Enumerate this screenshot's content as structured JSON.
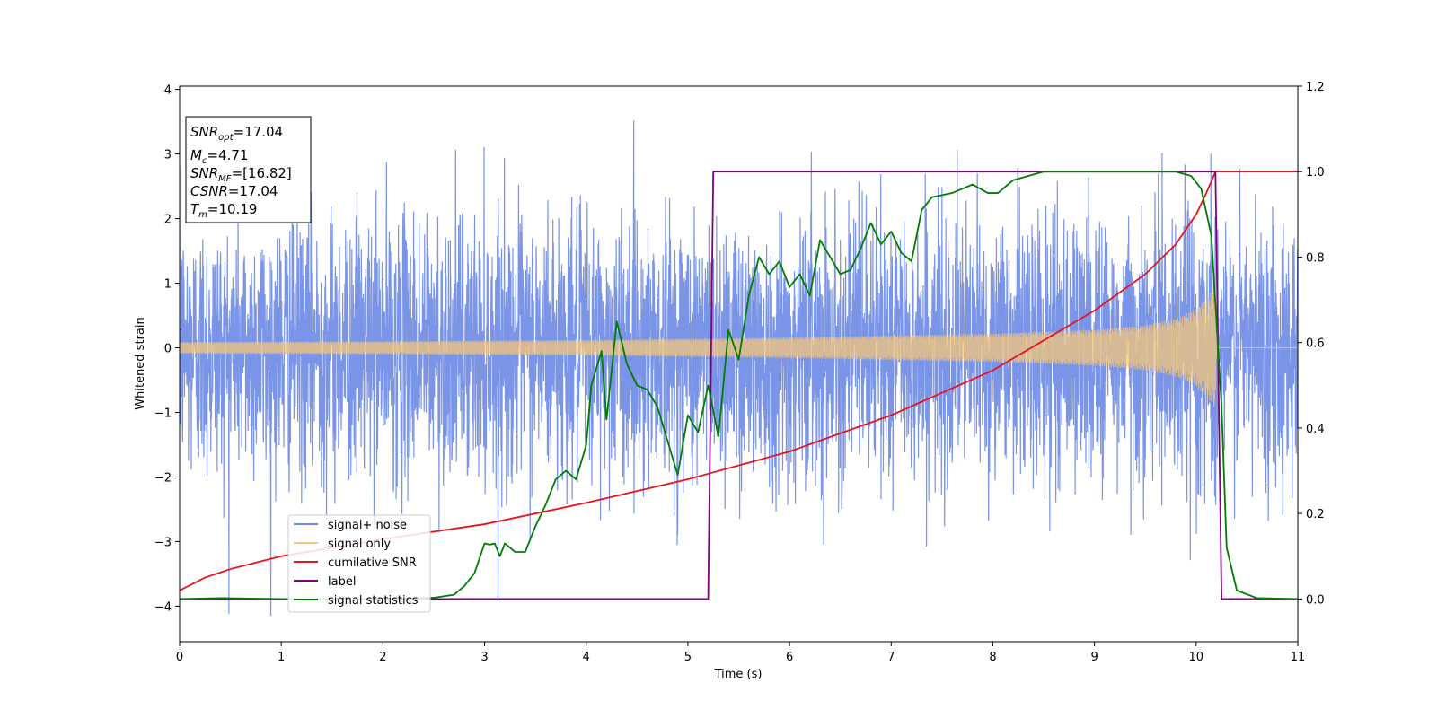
{
  "chart_data": {
    "type": "line",
    "xlabel": "Time (s)",
    "ylabel": "Whitened strain",
    "xlim": [
      0,
      11
    ],
    "ylim_left": [
      -4.55,
      4.05
    ],
    "ylim_right": [
      -0.1,
      1.2
    ],
    "x_ticks": [
      "0",
      "1",
      "2",
      "3",
      "4",
      "5",
      "6",
      "7",
      "8",
      "9",
      "10",
      "11"
    ],
    "y_ticks_left": [
      "−4",
      "−3",
      "−2",
      "−1",
      "0",
      "1",
      "2",
      "3",
      "4"
    ],
    "y_ticks_right": [
      "0.0",
      "0.2",
      "0.4",
      "0.6",
      "0.8",
      "1.0",
      "1.2"
    ],
    "legend_location": "lower-left",
    "info_box": {
      "snr_opt": {
        "sym": "SNR",
        "sub": "opt",
        "value": "=17.04"
      },
      "mc": {
        "sym": "M",
        "sub": "c",
        "value": "=4.71"
      },
      "snr_mf": {
        "sym": "SNR",
        "sub": "MF",
        "value": "=[16.82]"
      },
      "csnr": {
        "sym": "CSNR",
        "sub": "",
        "value": "=17.04"
      },
      "tm": {
        "sym": "T",
        "sub": "m",
        "value": "=10.19"
      }
    },
    "series": [
      {
        "name": "signal+ noise",
        "axis": "left",
        "color": "#6b8ae6",
        "noise_sigma": 1.0,
        "peak_range": [
          -4.15,
          3.65
        ]
      },
      {
        "name": "signal only",
        "axis": "left",
        "color": "#f5c77a",
        "envelope": [
          {
            "x": 0,
            "y": 0.09
          },
          {
            "x": 2,
            "y": 0.1
          },
          {
            "x": 4,
            "y": 0.12
          },
          {
            "x": 6,
            "y": 0.16
          },
          {
            "x": 8,
            "y": 0.22
          },
          {
            "x": 9,
            "y": 0.28
          },
          {
            "x": 9.5,
            "y": 0.35
          },
          {
            "x": 9.8,
            "y": 0.45
          },
          {
            "x": 10.0,
            "y": 0.6
          },
          {
            "x": 10.1,
            "y": 0.75
          },
          {
            "x": 10.19,
            "y": 0.95
          },
          {
            "x": 10.2,
            "y": 0
          },
          {
            "x": 11,
            "y": 0
          }
        ]
      },
      {
        "name": "cumilative SNR",
        "axis": "right",
        "color": "#e8141c",
        "points": [
          {
            "x": 0,
            "y": 0.02
          },
          {
            "x": 0.25,
            "y": 0.05
          },
          {
            "x": 0.5,
            "y": 0.07
          },
          {
            "x": 1,
            "y": 0.1
          },
          {
            "x": 1.5,
            "y": 0.12
          },
          {
            "x": 2,
            "y": 0.14
          },
          {
            "x": 3,
            "y": 0.175
          },
          {
            "x": 4,
            "y": 0.225
          },
          {
            "x": 5,
            "y": 0.28
          },
          {
            "x": 6,
            "y": 0.345
          },
          {
            "x": 7,
            "y": 0.43
          },
          {
            "x": 8,
            "y": 0.535
          },
          {
            "x": 9,
            "y": 0.675
          },
          {
            "x": 9.5,
            "y": 0.76
          },
          {
            "x": 9.8,
            "y": 0.83
          },
          {
            "x": 10.0,
            "y": 0.9
          },
          {
            "x": 10.1,
            "y": 0.95
          },
          {
            "x": 10.19,
            "y": 1.0
          },
          {
            "x": 11,
            "y": 1.0
          }
        ]
      },
      {
        "name": "label",
        "axis": "right",
        "color": "#800080",
        "points": [
          {
            "x": 0,
            "y": 0.0
          },
          {
            "x": 5.2,
            "y": 0.0
          },
          {
            "x": 5.25,
            "y": 1.0
          },
          {
            "x": 10.19,
            "y": 1.0
          },
          {
            "x": 10.25,
            "y": 0.0
          },
          {
            "x": 11,
            "y": 0.0
          }
        ]
      },
      {
        "name": "signal statistics",
        "axis": "right",
        "color": "#007d00",
        "points": [
          {
            "x": 0,
            "y": 0.0
          },
          {
            "x": 0.4,
            "y": 0.002
          },
          {
            "x": 1,
            "y": 0.0
          },
          {
            "x": 2,
            "y": 0.0
          },
          {
            "x": 2.5,
            "y": 0.003
          },
          {
            "x": 2.7,
            "y": 0.01
          },
          {
            "x": 2.8,
            "y": 0.03
          },
          {
            "x": 2.9,
            "y": 0.06
          },
          {
            "x": 3.0,
            "y": 0.13
          },
          {
            "x": 3.05,
            "y": 0.127
          },
          {
            "x": 3.1,
            "y": 0.13
          },
          {
            "x": 3.15,
            "y": 0.1
          },
          {
            "x": 3.2,
            "y": 0.13
          },
          {
            "x": 3.3,
            "y": 0.11
          },
          {
            "x": 3.4,
            "y": 0.11
          },
          {
            "x": 3.5,
            "y": 0.17
          },
          {
            "x": 3.6,
            "y": 0.22
          },
          {
            "x": 3.7,
            "y": 0.28
          },
          {
            "x": 3.8,
            "y": 0.3
          },
          {
            "x": 3.9,
            "y": 0.28
          },
          {
            "x": 4.0,
            "y": 0.36
          },
          {
            "x": 4.05,
            "y": 0.5
          },
          {
            "x": 4.15,
            "y": 0.58
          },
          {
            "x": 4.2,
            "y": 0.42
          },
          {
            "x": 4.3,
            "y": 0.65
          },
          {
            "x": 4.4,
            "y": 0.55
          },
          {
            "x": 4.5,
            "y": 0.5
          },
          {
            "x": 4.6,
            "y": 0.49
          },
          {
            "x": 4.7,
            "y": 0.45
          },
          {
            "x": 4.8,
            "y": 0.37
          },
          {
            "x": 4.9,
            "y": 0.29
          },
          {
            "x": 5.0,
            "y": 0.43
          },
          {
            "x": 5.1,
            "y": 0.39
          },
          {
            "x": 5.2,
            "y": 0.5
          },
          {
            "x": 5.3,
            "y": 0.38
          },
          {
            "x": 5.4,
            "y": 0.63
          },
          {
            "x": 5.5,
            "y": 0.56
          },
          {
            "x": 5.6,
            "y": 0.71
          },
          {
            "x": 5.7,
            "y": 0.8
          },
          {
            "x": 5.8,
            "y": 0.76
          },
          {
            "x": 5.9,
            "y": 0.79
          },
          {
            "x": 6.0,
            "y": 0.73
          },
          {
            "x": 6.1,
            "y": 0.76
          },
          {
            "x": 6.2,
            "y": 0.71
          },
          {
            "x": 6.3,
            "y": 0.84
          },
          {
            "x": 6.4,
            "y": 0.8
          },
          {
            "x": 6.5,
            "y": 0.76
          },
          {
            "x": 6.6,
            "y": 0.77
          },
          {
            "x": 6.7,
            "y": 0.82
          },
          {
            "x": 6.8,
            "y": 0.88
          },
          {
            "x": 6.9,
            "y": 0.83
          },
          {
            "x": 7.0,
            "y": 0.86
          },
          {
            "x": 7.1,
            "y": 0.81
          },
          {
            "x": 7.2,
            "y": 0.79
          },
          {
            "x": 7.3,
            "y": 0.91
          },
          {
            "x": 7.4,
            "y": 0.94
          },
          {
            "x": 7.6,
            "y": 0.95
          },
          {
            "x": 7.8,
            "y": 0.97
          },
          {
            "x": 7.95,
            "y": 0.95
          },
          {
            "x": 8.05,
            "y": 0.95
          },
          {
            "x": 8.2,
            "y": 0.98
          },
          {
            "x": 8.5,
            "y": 1.0
          },
          {
            "x": 9.0,
            "y": 1.0
          },
          {
            "x": 9.5,
            "y": 1.0
          },
          {
            "x": 9.8,
            "y": 1.0
          },
          {
            "x": 9.95,
            "y": 0.99
          },
          {
            "x": 10.05,
            "y": 0.96
          },
          {
            "x": 10.15,
            "y": 0.85
          },
          {
            "x": 10.25,
            "y": 0.45
          },
          {
            "x": 10.3,
            "y": 0.12
          },
          {
            "x": 10.4,
            "y": 0.02
          },
          {
            "x": 10.6,
            "y": 0.002
          },
          {
            "x": 11,
            "y": 0.0
          }
        ]
      }
    ]
  }
}
